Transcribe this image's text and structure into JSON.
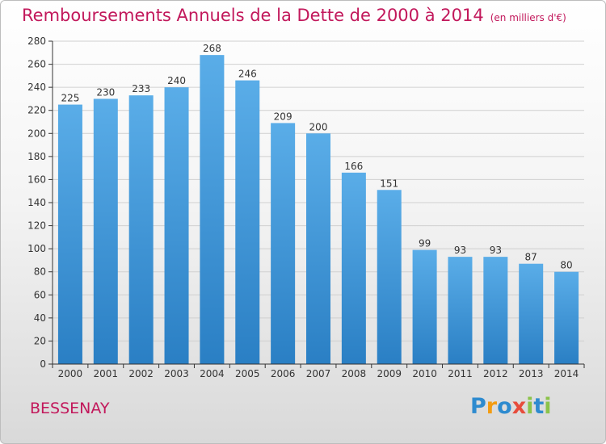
{
  "title": "Remboursements Annuels de la Dette de 2000 à 2014",
  "unit": "(en milliers d'€)",
  "commune": "BESSENAY",
  "logo": {
    "text": "Proxiti",
    "letters": [
      {
        "ch": "P",
        "color": "#2e8bcf"
      },
      {
        "ch": "r",
        "color": "#f39c12"
      },
      {
        "ch": "o",
        "color": "#2e8bcf"
      },
      {
        "ch": "x",
        "color": "#e74c3c"
      },
      {
        "ch": "i",
        "color": "#8bc34a"
      },
      {
        "ch": "t",
        "color": "#2e8bcf"
      },
      {
        "ch": "i",
        "color": "#8bc34a"
      }
    ]
  },
  "colors": {
    "title": "#c2185b",
    "bar_top": "#5aade8",
    "bar_bottom": "#2a7fc4",
    "grid": "#d0d0d0",
    "axis": "#333333"
  },
  "chart_data": {
    "type": "bar",
    "title": "Remboursements Annuels de la Dette de 2000 à 2014",
    "ylabel": "",
    "xlabel": "",
    "categories": [
      "2000",
      "2001",
      "2002",
      "2003",
      "2004",
      "2005",
      "2006",
      "2007",
      "2008",
      "2009",
      "2010",
      "2011",
      "2012",
      "2013",
      "2014"
    ],
    "values": [
      225,
      230,
      233,
      240,
      268,
      246,
      209,
      200,
      166,
      151,
      99,
      93,
      93,
      87,
      80
    ],
    "ylim": [
      0,
      280
    ],
    "yticks": [
      0,
      20,
      40,
      60,
      80,
      100,
      120,
      140,
      160,
      180,
      200,
      220,
      240,
      260,
      280
    ],
    "grid": true,
    "data_labels": true
  }
}
